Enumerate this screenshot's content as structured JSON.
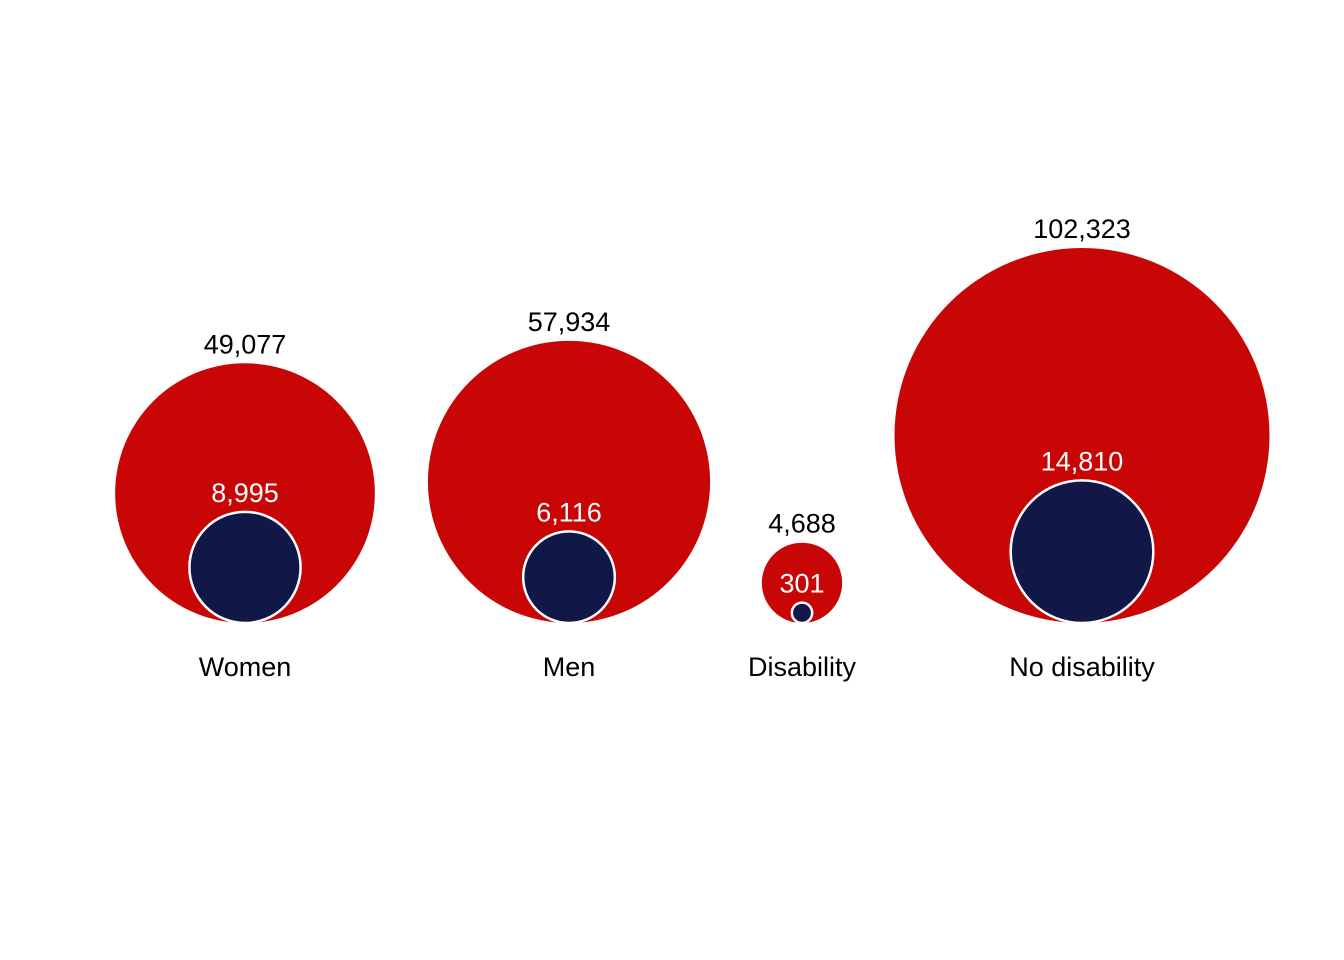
{
  "chart_data": {
    "type": "nested-bubble",
    "title": "",
    "colors": {
      "outer": "#c80606",
      "inner": "#111848",
      "inner_stroke": "#ffffff"
    },
    "items": [
      {
        "category": "Women",
        "total": 49077,
        "total_label": "49,077",
        "inner": 8995,
        "inner_label": "8,995"
      },
      {
        "category": "Men",
        "total": 57934,
        "total_label": "57,934",
        "inner": 6116,
        "inner_label": "6,116"
      },
      {
        "category": "Disability",
        "total": 4688,
        "total_label": "4,688",
        "inner": 301,
        "inner_label": "301"
      },
      {
        "category": "No disability",
        "total": 102323,
        "total_label": "102,323",
        "inner": 14810,
        "inner_label": "14,810"
      }
    ]
  }
}
